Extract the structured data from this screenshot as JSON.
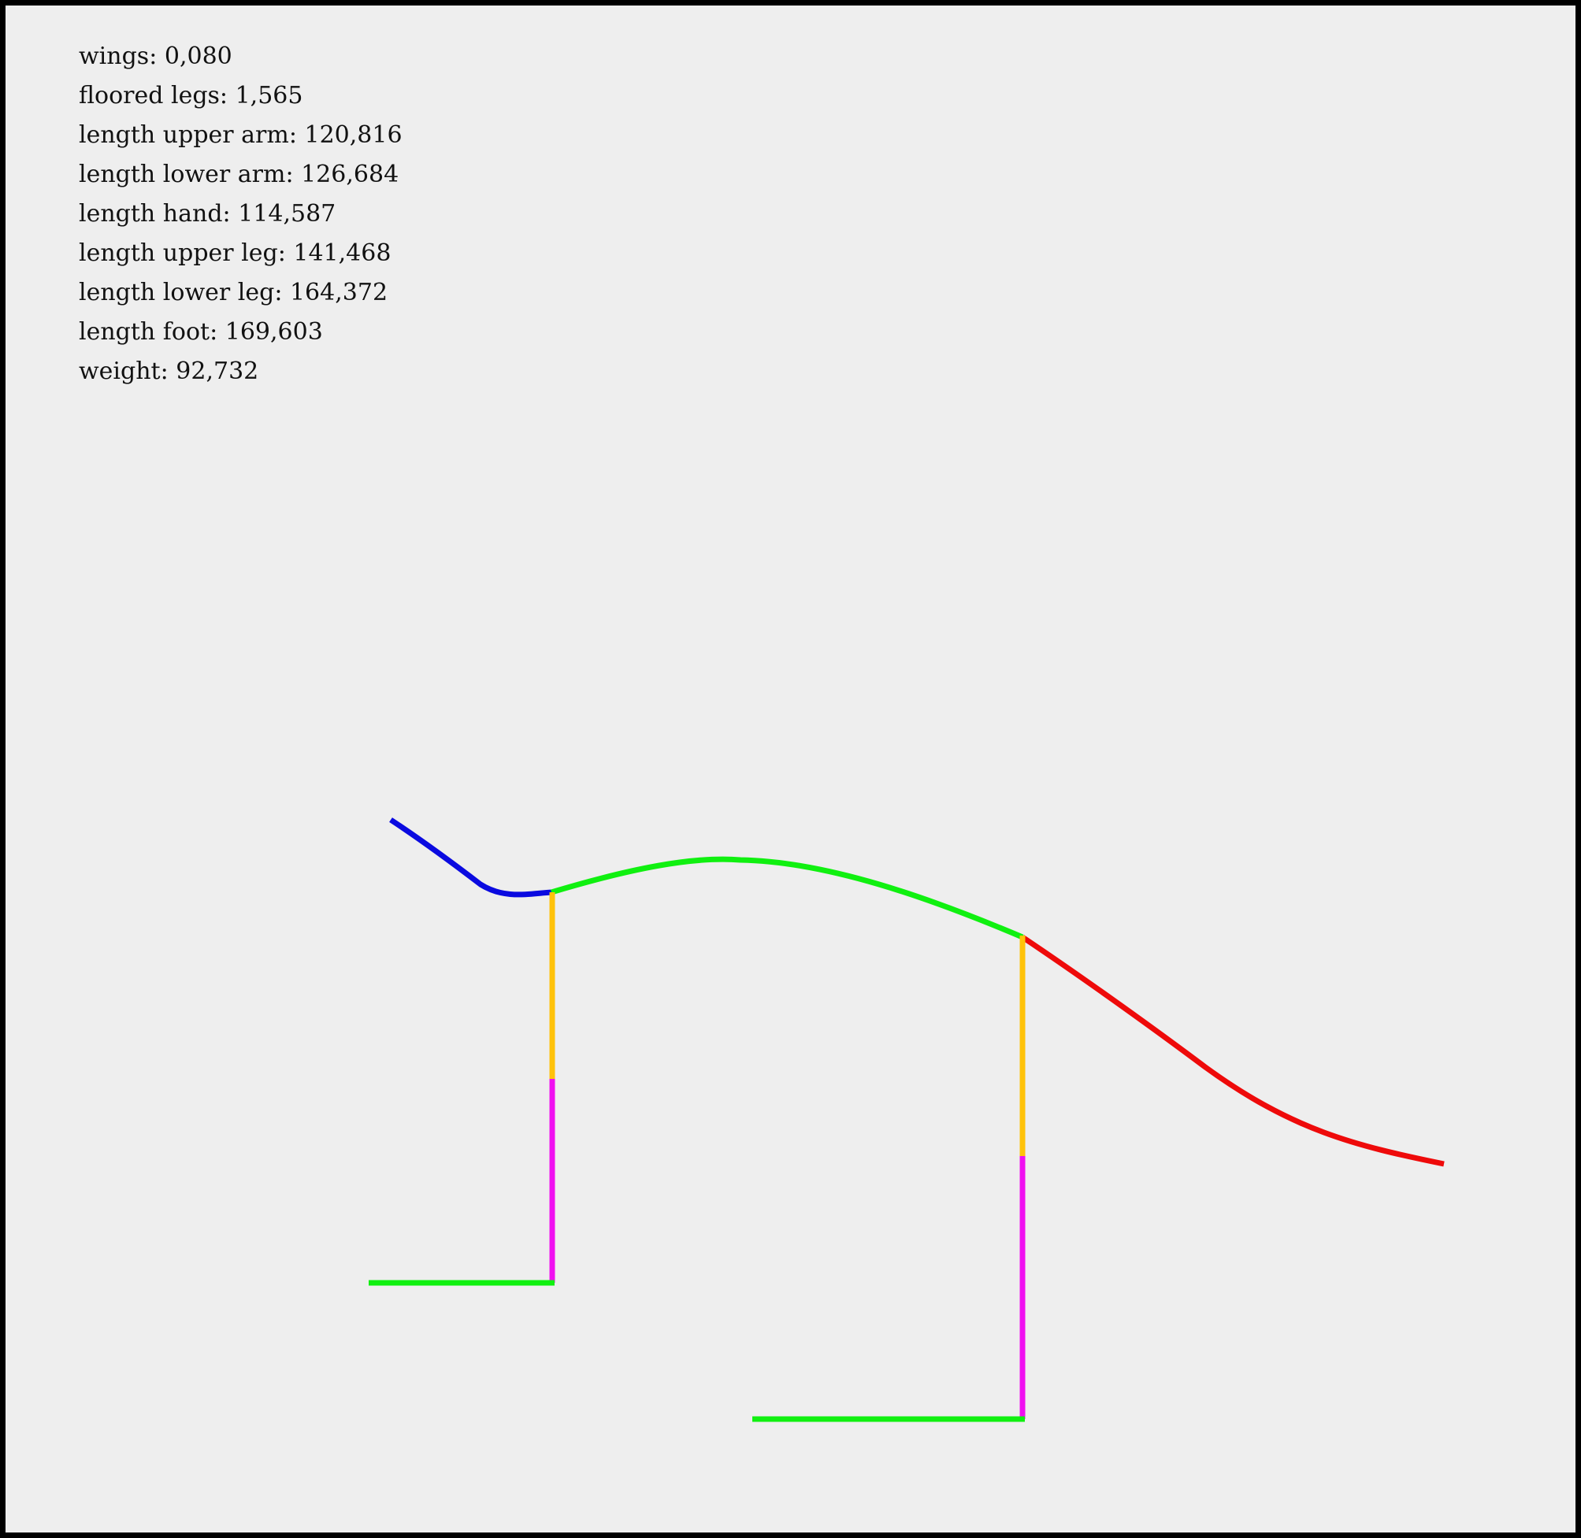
{
  "stats": [
    {
      "label": "wings",
      "value": "0,080"
    },
    {
      "label": "floored legs",
      "value": "1,565"
    },
    {
      "label": "length upper arm",
      "value": "120,816"
    },
    {
      "label": "length lower arm",
      "value": "126,684"
    },
    {
      "label": "length hand",
      "value": "114,587"
    },
    {
      "label": "length upper leg",
      "value": "141,468"
    },
    {
      "label": "length lower leg",
      "value": "164,372"
    },
    {
      "label": "length foot",
      "value": "169,603"
    },
    {
      "label": "weight",
      "value": "92,732"
    }
  ],
  "colors": {
    "background": "#eeeeee",
    "border": "#000000",
    "head": "#0a0ae0",
    "body": "#10f010",
    "tail": "#ee0a0a",
    "upper_leg": "#ffc20a",
    "lower_leg": "#f010f0",
    "foot": "#10f010"
  }
}
